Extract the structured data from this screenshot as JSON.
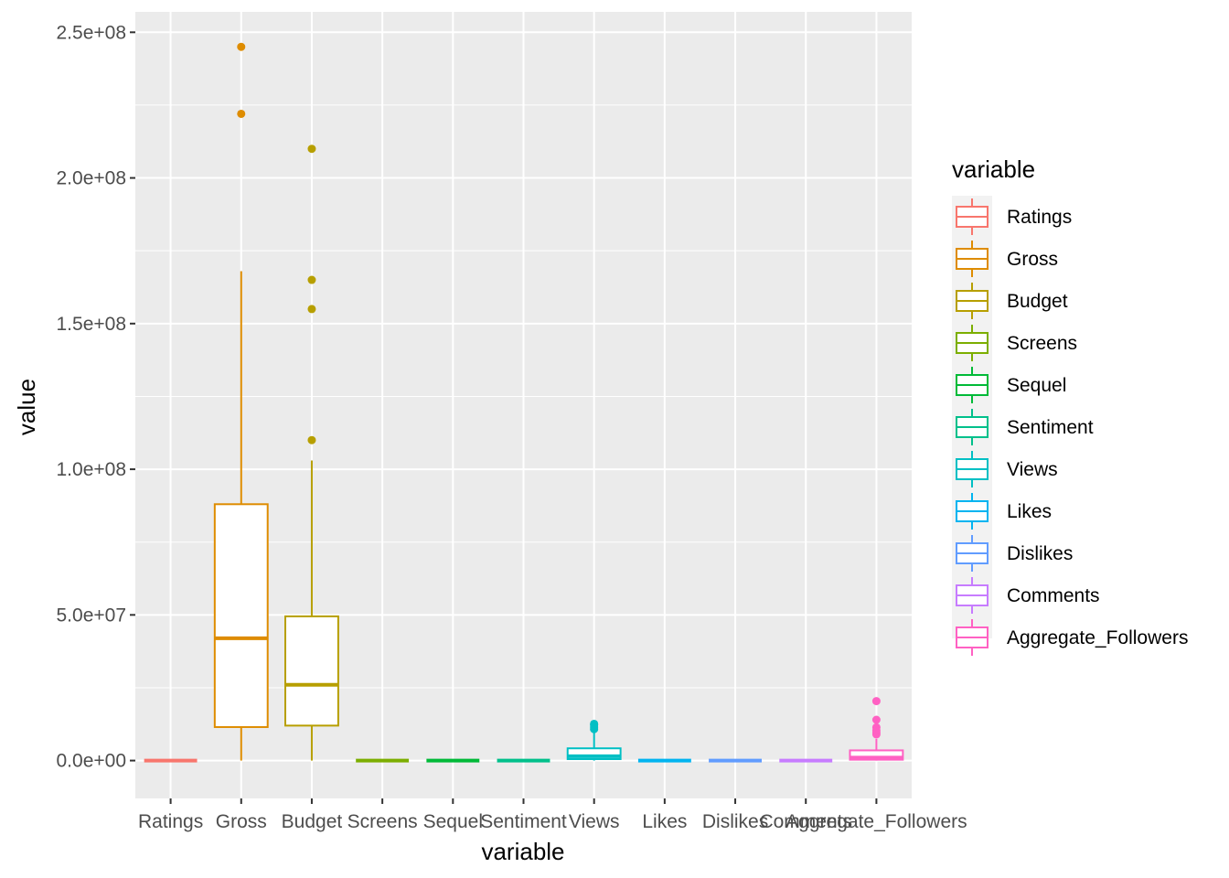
{
  "chart_data": {
    "type": "boxplot",
    "xlabel": "variable",
    "ylabel": "value",
    "ylim": [
      -13000000,
      257000000
    ],
    "y_ticks": [
      0,
      50000000,
      100000000,
      150000000,
      200000000,
      250000000
    ],
    "y_tick_labels": [
      "0.0e+00",
      "5.0e+07",
      "1.0e+08",
      "1.5e+08",
      "2.0e+08",
      "2.5e+08"
    ],
    "categories": [
      "Ratings",
      "Gross",
      "Budget",
      "Screens",
      "Sequel",
      "Sentiment",
      "Views",
      "Likes",
      "Dislikes",
      "Comments",
      "Aggregate_Followers"
    ],
    "grid": true,
    "legend": {
      "title": "variable",
      "position": "right"
    },
    "series": [
      {
        "name": "Ratings",
        "color": "#F8766D",
        "lower": 0,
        "q1": 0,
        "median": 0,
        "q3": 0,
        "upper": 0,
        "outliers": []
      },
      {
        "name": "Gross",
        "color": "#DE8C00",
        "lower": 0,
        "q1": 11500000,
        "median": 42000000,
        "q3": 88000000,
        "upper": 168000000,
        "outliers": [
          222000000,
          245000000
        ]
      },
      {
        "name": "Budget",
        "color": "#B79F00",
        "lower": 0,
        "q1": 12000000,
        "median": 26000000,
        "q3": 49500000,
        "upper": 103000000,
        "outliers": [
          110000000,
          155000000,
          165000000,
          210000000
        ]
      },
      {
        "name": "Screens",
        "color": "#7CAE00",
        "lower": 0,
        "q1": 0,
        "median": 0,
        "q3": 0,
        "upper": 0,
        "outliers": []
      },
      {
        "name": "Sequel",
        "color": "#00BA38",
        "lower": 0,
        "q1": 0,
        "median": 0,
        "q3": 0,
        "upper": 0,
        "outliers": []
      },
      {
        "name": "Sentiment",
        "color": "#00C08B",
        "lower": 0,
        "q1": 0,
        "median": 0,
        "q3": 0,
        "upper": 0,
        "outliers": []
      },
      {
        "name": "Views",
        "color": "#00BFC4",
        "lower": 0,
        "q1": 500000,
        "median": 1500000,
        "q3": 4200000,
        "upper": 9500000,
        "outliers": [
          10800000,
          11500000,
          12200000,
          12600000
        ]
      },
      {
        "name": "Likes",
        "color": "#00B4F0",
        "lower": 0,
        "q1": 0,
        "median": 0,
        "q3": 0,
        "upper": 0,
        "outliers": []
      },
      {
        "name": "Dislikes",
        "color": "#619CFF",
        "lower": 0,
        "q1": 0,
        "median": 0,
        "q3": 0,
        "upper": 0,
        "outliers": []
      },
      {
        "name": "Comments",
        "color": "#C77CFF",
        "lower": 0,
        "q1": 0,
        "median": 0,
        "q3": 0,
        "upper": 0,
        "outliers": []
      },
      {
        "name": "Aggregate_Followers",
        "color": "#FF61C3",
        "lower": 0,
        "q1": 300000,
        "median": 1000000,
        "q3": 3500000,
        "upper": 7500000,
        "outliers": [
          9000000,
          9600000,
          10400000,
          11400000,
          14000000,
          20400000
        ]
      }
    ]
  }
}
